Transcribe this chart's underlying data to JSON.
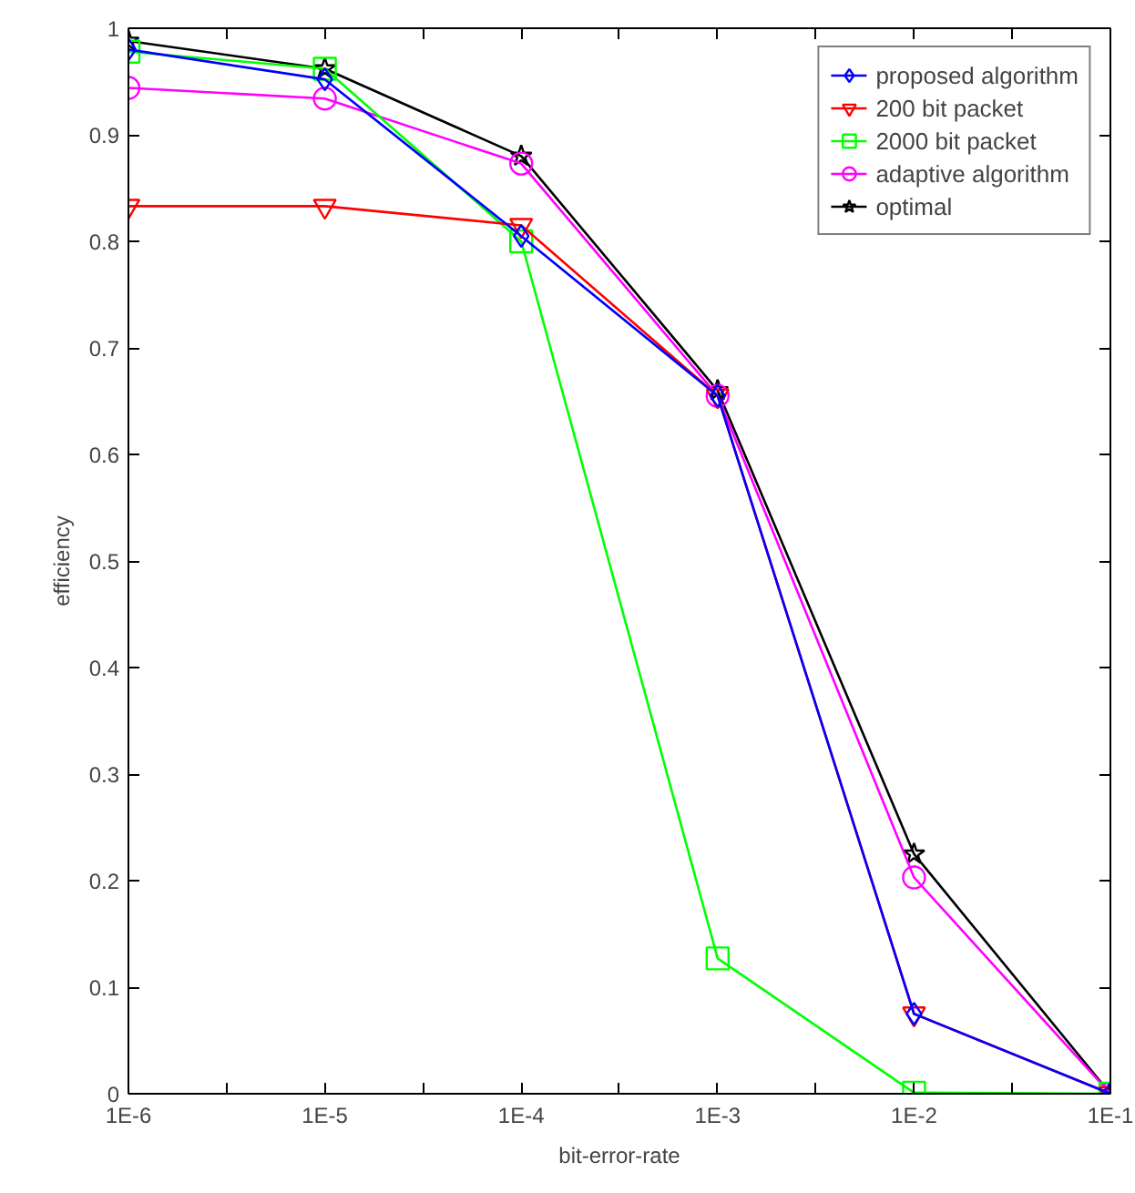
{
  "chart_data": {
    "type": "line",
    "xlabel": "bit-error-rate",
    "ylabel": "efficiency",
    "x": [
      1e-06,
      1e-05,
      0.0001,
      0.001,
      0.01,
      0.1
    ],
    "log": "x",
    "xlim": [
      1e-06,
      0.1
    ],
    "xticks": [
      {
        "value": 1e-06,
        "label": "1E-6"
      },
      {
        "value": 3.16e-06,
        "label": null
      },
      {
        "value": 1e-05,
        "label": "1E-5"
      },
      {
        "value": 3.16e-05,
        "label": null
      },
      {
        "value": 0.0001,
        "label": "1E-4"
      },
      {
        "value": 0.000316,
        "label": null
      },
      {
        "value": 0.001,
        "label": "1E-3"
      },
      {
        "value": 0.00316,
        "label": null
      },
      {
        "value": 0.01,
        "label": "1E-2"
      },
      {
        "value": 0.0316,
        "label": null
      },
      {
        "value": 0.1,
        "label": "1E-1"
      }
    ],
    "ylim": [
      0,
      1
    ],
    "yticks": [
      0,
      0.1,
      0.2,
      0.3,
      0.4,
      0.5,
      0.6,
      0.7,
      0.8,
      0.9,
      1
    ],
    "grid": false,
    "legend": "top right",
    "series": [
      {
        "name": "proposed algorithm",
        "color": "#0000ff",
        "marker": "diamond",
        "values": [
          0.98,
          0.952,
          0.805,
          0.655,
          0.075,
          0
        ]
      },
      {
        "name": "200 bit packet",
        "color": "#ff0000",
        "marker": "triangle",
        "values": [
          0.833,
          0.833,
          0.815,
          0.655,
          0.075,
          0
        ]
      },
      {
        "name": "2000 bit packet",
        "color": "#00ff00",
        "marker": "square",
        "values": [
          0.978,
          0.962,
          0.8,
          0.127,
          0.001,
          0
        ]
      },
      {
        "name": "adaptive algorithm",
        "color": "#ff00ff",
        "marker": "circle",
        "values": [
          0.944,
          0.934,
          0.873,
          0.655,
          0.203,
          0
        ]
      },
      {
        "name": "optimal",
        "color": "#000000",
        "marker": "star",
        "values": [
          0.988,
          0.962,
          0.88,
          0.66,
          0.225,
          0
        ]
      }
    ]
  }
}
